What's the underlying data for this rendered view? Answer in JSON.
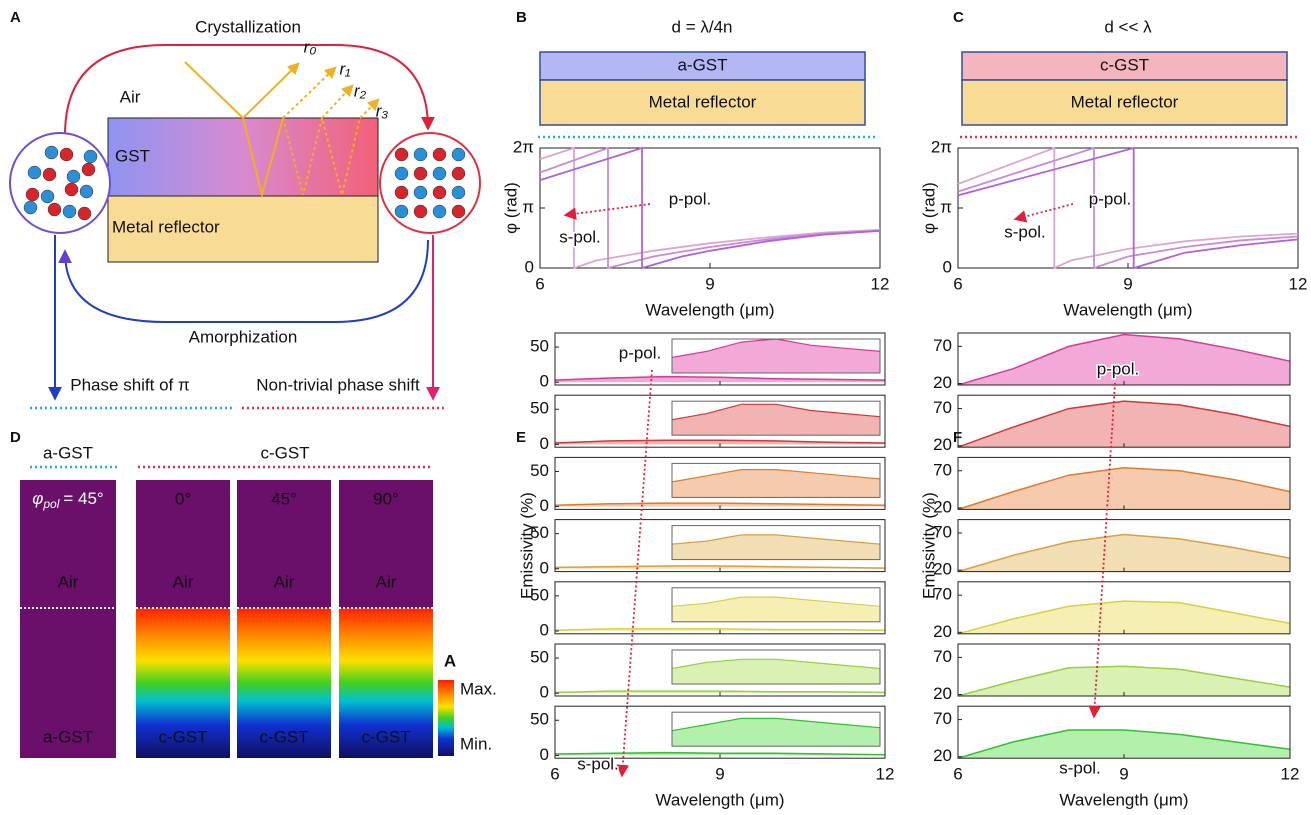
{
  "panel_a": {
    "label": "A",
    "crystallization": "Crystallization",
    "amorphization": "Amorphization",
    "air": "Air",
    "gst": "GST",
    "metal": "Metal reflector",
    "rays": [
      "r₀",
      "r₁",
      "r₂",
      "r₃"
    ],
    "left_caption": "Phase shift of π",
    "right_caption": "Non-trivial phase shift"
  },
  "panel_d": {
    "label": "D",
    "a_gst_header": "a-GST",
    "c_gst_header": "c-GST",
    "angle_symbol": "φ",
    "angle_sub": "pol",
    "columns": [
      {
        "angle": "= 45°",
        "top": "Air",
        "bottom": "a-GST"
      },
      {
        "angle": "0°",
        "top": "Air",
        "bottom": "c-GST"
      },
      {
        "angle": "45°",
        "top": "Air",
        "bottom": "c-GST"
      },
      {
        "angle": "90°",
        "top": "Air",
        "bottom": "c-GST"
      }
    ],
    "colorbar": {
      "label": "A",
      "max": "Max.",
      "min": "Min."
    }
  },
  "chart_data": [
    {
      "type": "line",
      "label": "B",
      "header": "d = λ/4n",
      "layers": [
        "a-GST",
        "Metal reflector"
      ],
      "xlabel": "Wavelength (μm)",
      "ylabel": "φ (rad)",
      "xlim": [
        6,
        12
      ],
      "xticks": [
        6,
        9,
        12
      ],
      "ylim": [
        0,
        6.28318
      ],
      "yticks": [
        0,
        {
          "value": 3.14159,
          "label": "π"
        },
        {
          "value": 6.28318,
          "label": "2π"
        }
      ],
      "annotations": [
        "p-pol.",
        "s-pol."
      ],
      "series": [
        {
          "color": "#dca6cf",
          "x": [
            6,
            6.6,
            6.6,
            7,
            8,
            9,
            10,
            11,
            12
          ],
          "values": [
            5.7,
            6.28318,
            0,
            0.4,
            0.9,
            1.3,
            1.6,
            1.85,
            2.0
          ]
        },
        {
          "color": "#c98ad8",
          "x": [
            6,
            7.2,
            7.2,
            8,
            9,
            10,
            11,
            12
          ],
          "values": [
            5.0,
            6.28318,
            0,
            0.6,
            1.1,
            1.5,
            1.8,
            1.95
          ]
        },
        {
          "color": "#b060e0",
          "x": [
            6,
            7.8,
            7.8,
            8.5,
            9,
            10,
            11,
            12
          ],
          "values": [
            4.6,
            6.28318,
            0,
            0.6,
            0.9,
            1.4,
            1.75,
            1.95
          ]
        }
      ]
    },
    {
      "type": "line",
      "label": "C",
      "header": "d << λ",
      "layers": [
        "c-GST",
        "Metal reflector"
      ],
      "xlabel": "Wavelength (μm)",
      "ylabel": "φ (rad)",
      "xlim": [
        6,
        12
      ],
      "xticks": [
        6,
        9,
        12
      ],
      "ylim": [
        0,
        6.28318
      ],
      "yticks": [
        0,
        {
          "value": 3.14159,
          "label": "π"
        },
        {
          "value": 6.28318,
          "label": "2π"
        }
      ],
      "annotations": [
        "p-pol.",
        "s-pol."
      ],
      "series": [
        {
          "color": "#dca6cf",
          "x": [
            6,
            7.7,
            7.7,
            8,
            9,
            10,
            11,
            12
          ],
          "values": [
            4.4,
            6.28318,
            0,
            0.4,
            1.0,
            1.4,
            1.65,
            1.8
          ]
        },
        {
          "color": "#c98ad8",
          "x": [
            6,
            8.4,
            8.4,
            9,
            10,
            11,
            12
          ],
          "values": [
            4.0,
            6.28318,
            0,
            0.6,
            1.1,
            1.45,
            1.65
          ]
        },
        {
          "color": "#b060e0",
          "x": [
            6,
            9.1,
            9.1,
            10,
            11,
            12
          ],
          "values": [
            3.8,
            6.28318,
            0,
            0.8,
            1.2,
            1.5
          ]
        }
      ]
    },
    {
      "type": "area",
      "label": "E",
      "xlabel": "Wavelength (μm)",
      "ylabel": "Emissivity (%)",
      "x": [
        6,
        7,
        8,
        9,
        10,
        11,
        12
      ],
      "xlim": [
        6,
        12
      ],
      "xticks": [
        6,
        9,
        12
      ],
      "ylim": [
        -4,
        70
      ],
      "yticks": [
        0,
        50
      ],
      "annotations": [
        "p-pol.",
        "s-pol."
      ],
      "series": [
        {
          "color": "#d63a9a",
          "fill_color": "#f2a9d8",
          "values": [
            3,
            6,
            8,
            7,
            5,
            4,
            3
          ],
          "inset_values": [
            5,
            7,
            10,
            11,
            9,
            8,
            7
          ]
        },
        {
          "color": "#d23838",
          "fill_color": "#f2b3b3",
          "values": [
            2,
            5,
            6,
            6,
            5,
            3,
            2
          ],
          "inset_values": [
            5,
            7,
            10,
            10,
            8,
            7,
            6
          ]
        },
        {
          "color": "#e07a30",
          "fill_color": "#f6cbad",
          "values": [
            2,
            4,
            5,
            5,
            4,
            3,
            2
          ],
          "inset_values": [
            5,
            7,
            9,
            9,
            8,
            7,
            6
          ]
        },
        {
          "color": "#d8a040",
          "fill_color": "#f1deb4",
          "values": [
            2,
            3,
            4,
            4,
            3,
            2,
            1
          ],
          "inset_values": [
            5,
            6,
            8,
            8,
            7,
            6,
            5
          ]
        },
        {
          "color": "#d8d040",
          "fill_color": "#f5efb4",
          "values": [
            1,
            3,
            3,
            3,
            2,
            2,
            1
          ],
          "inset_values": [
            5,
            6,
            8,
            8,
            7,
            6,
            5
          ]
        },
        {
          "color": "#98d040",
          "fill_color": "#daf1b4",
          "values": [
            1,
            3,
            3,
            3,
            2,
            2,
            1
          ],
          "inset_values": [
            5,
            7,
            8,
            8,
            7,
            6,
            5
          ]
        },
        {
          "color": "#30c030",
          "fill_color": "#b3f0ab",
          "values": [
            2,
            3,
            4,
            3,
            3,
            2,
            1
          ],
          "inset_values": [
            5,
            7,
            9,
            9,
            8,
            7,
            6
          ]
        }
      ]
    },
    {
      "type": "area",
      "label": "F",
      "xlabel": "Wavelength (μm)",
      "ylabel": "Emissivity (%)",
      "x": [
        6,
        7,
        8,
        9,
        10,
        11,
        12
      ],
      "xlim": [
        6,
        12
      ],
      "xticks": [
        6,
        9,
        12
      ],
      "ylim": [
        18,
        88
      ],
      "yticks": [
        20,
        70
      ],
      "annotations": [
        "p-pol.",
        "s-pol."
      ],
      "series": [
        {
          "color": "#d63a9a",
          "fill_color": "#f2a9d8",
          "values": [
            18,
            40,
            70,
            86,
            80,
            66,
            50
          ]
        },
        {
          "color": "#d23838",
          "fill_color": "#f2b3b3",
          "values": [
            18,
            45,
            70,
            80,
            75,
            62,
            46
          ]
        },
        {
          "color": "#e07a30",
          "fill_color": "#f6cbad",
          "values": [
            18,
            42,
            64,
            74,
            70,
            58,
            42
          ]
        },
        {
          "color": "#d8a040",
          "fill_color": "#f1deb4",
          "values": [
            18,
            40,
            58,
            68,
            62,
            50,
            36
          ]
        },
        {
          "color": "#d8d040",
          "fill_color": "#f5efb4",
          "values": [
            18,
            38,
            55,
            62,
            60,
            46,
            32
          ]
        },
        {
          "color": "#98d040",
          "fill_color": "#daf1b4",
          "values": [
            18,
            38,
            56,
            58,
            54,
            42,
            30
          ]
        },
        {
          "color": "#30c030",
          "fill_color": "#b3f0ab",
          "values": [
            18,
            40,
            56,
            56,
            50,
            40,
            30
          ]
        }
      ]
    }
  ]
}
